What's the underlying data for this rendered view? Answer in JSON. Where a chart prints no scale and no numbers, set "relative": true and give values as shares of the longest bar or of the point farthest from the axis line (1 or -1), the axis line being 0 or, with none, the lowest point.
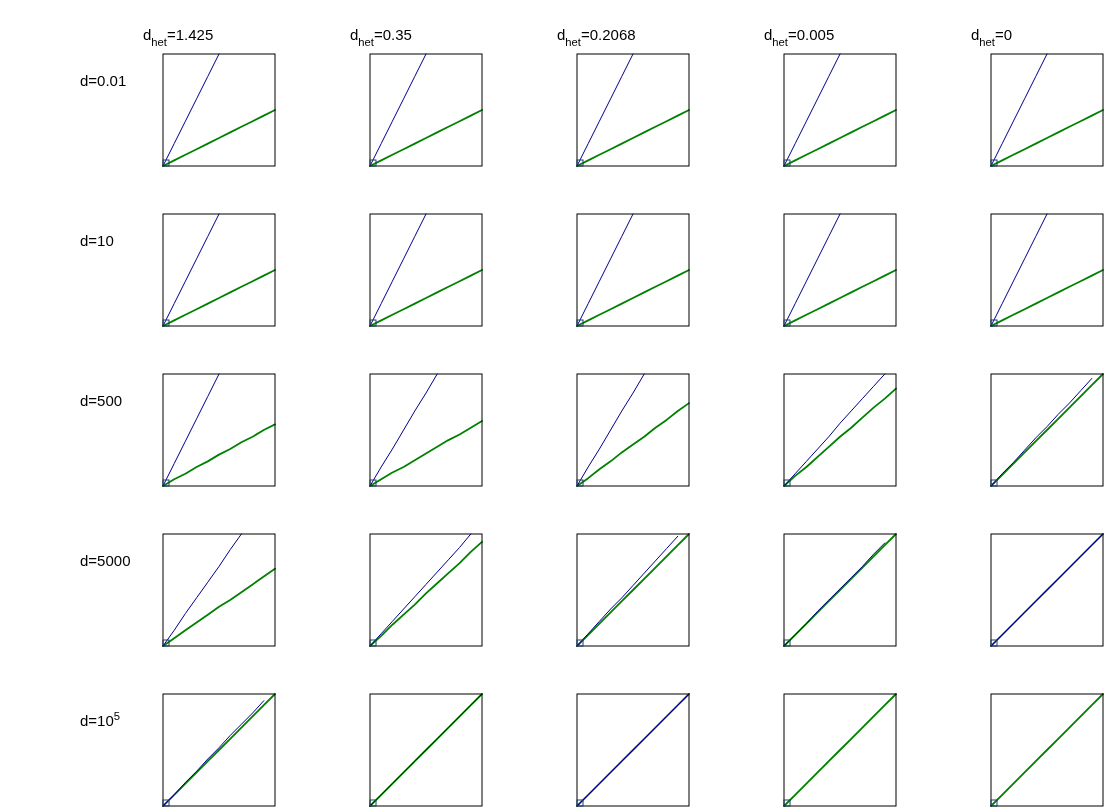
{
  "chart_data": [
    {
      "type": "line",
      "relative": true,
      "title": "d$_{het}$=1.425",
      "ylabel": "d=0.01",
      "categories": [
        null,
        null,
        null,
        null,
        null,
        null,
        null,
        null,
        null,
        null,
        null
      ],
      "series": [
        {
          "color": "#00008b",
          "values": [
            0,
            0.2,
            0.4,
            0.6,
            0.8,
            1,
            null,
            null,
            null,
            null,
            null
          ]
        },
        {
          "color": "#008000",
          "values": [
            0,
            0.05,
            0.1,
            0.15,
            0.2,
            0.25,
            0.3,
            0.35,
            0.4,
            0.45,
            0.5
          ]
        }
      ]
    },
    {
      "type": "line",
      "relative": true,
      "title": "d$_{het}$=0.35",
      "categories": [
        null,
        null,
        null,
        null,
        null,
        null,
        null,
        null,
        null,
        null,
        null
      ],
      "series": [
        {
          "color": "#00008b",
          "values": [
            0,
            0.2,
            0.4,
            0.6,
            0.8,
            1,
            null,
            null,
            null,
            null,
            null
          ]
        },
        {
          "color": "#008000",
          "values": [
            0,
            0.05,
            0.1,
            0.15,
            0.2,
            0.25,
            0.3,
            0.35,
            0.4,
            0.45,
            0.5
          ]
        }
      ]
    },
    {
      "type": "line",
      "relative": true,
      "title": "d$_{het}$=0.2068",
      "categories": [
        null,
        null,
        null,
        null,
        null,
        null,
        null,
        null,
        null,
        null,
        null
      ],
      "series": [
        {
          "color": "#00008b",
          "values": [
            0,
            0.2,
            0.4,
            0.6,
            0.8,
            1,
            null,
            null,
            null,
            null,
            null
          ]
        },
        {
          "color": "#008000",
          "values": [
            0,
            0.05,
            0.1,
            0.15,
            0.2,
            0.25,
            0.3,
            0.35,
            0.4,
            0.45,
            0.5
          ]
        }
      ]
    },
    {
      "type": "line",
      "relative": true,
      "title": "d$_{het}$=0.005",
      "categories": [
        null,
        null,
        null,
        null,
        null,
        null,
        null,
        null,
        null,
        null,
        null
      ],
      "series": [
        {
          "color": "#00008b",
          "values": [
            0,
            0.2,
            0.4,
            0.6,
            0.8,
            1,
            null,
            null,
            null,
            null,
            null
          ]
        },
        {
          "color": "#008000",
          "values": [
            0,
            0.05,
            0.1,
            0.15,
            0.2,
            0.25,
            0.3,
            0.35,
            0.4,
            0.45,
            0.5
          ]
        }
      ]
    },
    {
      "type": "line",
      "relative": true,
      "title": "d$_{het}$=0",
      "categories": [
        null,
        null,
        null,
        null,
        null,
        null,
        null,
        null,
        null,
        null,
        null
      ],
      "series": [
        {
          "color": "#00008b",
          "values": [
            0,
            0.2,
            0.4,
            0.6,
            0.8,
            1,
            null,
            null,
            null,
            null,
            null
          ]
        },
        {
          "color": "#008000",
          "values": [
            0,
            0.05,
            0.1,
            0.15,
            0.2,
            0.25,
            0.3,
            0.35,
            0.4,
            0.45,
            0.5
          ]
        }
      ]
    },
    {
      "type": "line",
      "relative": true,
      "ylabel": "d=10",
      "categories": [
        null,
        null,
        null,
        null,
        null,
        null,
        null,
        null,
        null,
        null,
        null
      ],
      "series": [
        {
          "color": "#00008b",
          "values": [
            0,
            0.2,
            0.4,
            0.6,
            0.8,
            1,
            null,
            null,
            null,
            null,
            null
          ]
        },
        {
          "color": "#008000",
          "values": [
            0,
            0.05,
            0.1,
            0.15,
            0.2,
            0.25,
            0.3,
            0.35,
            0.4,
            0.45,
            0.5
          ]
        }
      ]
    },
    {
      "type": "line",
      "relative": true,
      "categories": [
        null,
        null,
        null,
        null,
        null,
        null,
        null,
        null,
        null,
        null,
        null
      ],
      "series": [
        {
          "color": "#00008b",
          "values": [
            0,
            0.2,
            0.4,
            0.6,
            0.8,
            1,
            null,
            null,
            null,
            null,
            null
          ]
        },
        {
          "color": "#008000",
          "values": [
            0,
            0.05,
            0.1,
            0.15,
            0.2,
            0.25,
            0.3,
            0.35,
            0.4,
            0.45,
            0.5
          ]
        }
      ]
    },
    {
      "type": "line",
      "relative": true,
      "categories": [
        null,
        null,
        null,
        null,
        null,
        null,
        null,
        null,
        null,
        null,
        null
      ],
      "series": [
        {
          "color": "#00008b",
          "values": [
            0,
            0.2,
            0.4,
            0.6,
            0.8,
            1,
            null,
            null,
            null,
            null,
            null
          ]
        },
        {
          "color": "#008000",
          "values": [
            0,
            0.05,
            0.1,
            0.15,
            0.2,
            0.25,
            0.3,
            0.35,
            0.4,
            0.45,
            0.5
          ]
        }
      ]
    },
    {
      "type": "line",
      "relative": true,
      "categories": [
        null,
        null,
        null,
        null,
        null,
        null,
        null,
        null,
        null,
        null,
        null
      ],
      "series": [
        {
          "color": "#00008b",
          "values": [
            0,
            0.2,
            0.4,
            0.6,
            0.8,
            1,
            null,
            null,
            null,
            null,
            null
          ]
        },
        {
          "color": "#008000",
          "values": [
            0,
            0.05,
            0.1,
            0.15,
            0.2,
            0.25,
            0.3,
            0.35,
            0.4,
            0.45,
            0.5
          ]
        }
      ]
    },
    {
      "type": "line",
      "relative": true,
      "categories": [
        null,
        null,
        null,
        null,
        null,
        null,
        null,
        null,
        null,
        null,
        null
      ],
      "series": [
        {
          "color": "#00008b",
          "values": [
            0,
            0.2,
            0.4,
            0.6,
            0.8,
            1,
            null,
            null,
            null,
            null,
            null
          ]
        },
        {
          "color": "#008000",
          "values": [
            0,
            0.05,
            0.1,
            0.15,
            0.2,
            0.25,
            0.3,
            0.35,
            0.4,
            0.45,
            0.5
          ]
        }
      ]
    },
    {
      "type": "line",
      "relative": true,
      "ylabel": "d=500",
      "categories": [
        null,
        null,
        null,
        null,
        null,
        null,
        null,
        null,
        null,
        null,
        null
      ],
      "series": [
        {
          "color": "#00008b",
          "values": [
            0,
            0.2,
            0.4,
            0.6,
            0.8,
            1,
            null,
            null,
            null,
            null,
            null
          ]
        },
        {
          "color": "#008000",
          "values": [
            0,
            0.06,
            0.11,
            0.17,
            0.22,
            0.28,
            0.33,
            0.39,
            0.44,
            0.5,
            0.55
          ]
        }
      ]
    },
    {
      "type": "line",
      "relative": true,
      "categories": [
        null,
        null,
        null,
        null,
        null,
        null,
        null,
        null,
        null,
        null,
        null
      ],
      "series": [
        {
          "color": "#00008b",
          "values": [
            0,
            0.17,
            0.33,
            0.5,
            0.67,
            0.83,
            1,
            null,
            null,
            null,
            null
          ]
        },
        {
          "color": "#008000",
          "values": [
            0,
            0.06,
            0.12,
            0.17,
            0.23,
            0.29,
            0.35,
            0.41,
            0.46,
            0.52,
            0.58
          ]
        }
      ]
    },
    {
      "type": "line",
      "relative": true,
      "categories": [
        null,
        null,
        null,
        null,
        null,
        null,
        null,
        null,
        null,
        null,
        null
      ],
      "series": [
        {
          "color": "#00008b",
          "values": [
            0,
            0.17,
            0.33,
            0.5,
            0.67,
            0.83,
            1,
            null,
            null,
            null,
            null
          ]
        },
        {
          "color": "#008000",
          "values": [
            0,
            0.07,
            0.15,
            0.22,
            0.3,
            0.37,
            0.44,
            0.52,
            0.59,
            0.67,
            0.74
          ]
        }
      ]
    },
    {
      "type": "line",
      "relative": true,
      "categories": [
        null,
        null,
        null,
        null,
        null,
        null,
        null,
        null,
        null,
        null,
        null
      ],
      "series": [
        {
          "color": "#00008b",
          "values": [
            0,
            0.11,
            0.22,
            0.33,
            0.44,
            0.56,
            0.67,
            0.78,
            0.89,
            1,
            null
          ]
        },
        {
          "color": "#008000",
          "values": [
            0,
            0.09,
            0.17,
            0.26,
            0.35,
            0.44,
            0.52,
            0.61,
            0.7,
            0.78,
            0.87
          ]
        }
      ]
    },
    {
      "type": "line",
      "relative": true,
      "categories": [
        null,
        null,
        null,
        null,
        null,
        null,
        null,
        null,
        null,
        null,
        null
      ],
      "series": [
        {
          "color": "#00008b",
          "values": [
            0,
            0.11,
            0.21,
            0.32,
            0.43,
            0.53,
            0.64,
            0.74,
            0.85,
            0.96,
            null
          ]
        },
        {
          "color": "#008000",
          "values": [
            0,
            0.1,
            0.2,
            0.3,
            0.4,
            0.5,
            0.6,
            0.7,
            0.8,
            0.9,
            1
          ]
        }
      ]
    },
    {
      "type": "line",
      "relative": true,
      "ylabel": "d=5000",
      "categories": [
        null,
        null,
        null,
        null,
        null,
        null,
        null,
        null,
        null,
        null,
        null
      ],
      "series": [
        {
          "color": "#00008b",
          "values": [
            0,
            0.14,
            0.29,
            0.43,
            0.57,
            0.71,
            0.86,
            1,
            null,
            null,
            null
          ]
        },
        {
          "color": "#008000",
          "values": [
            0,
            0.07,
            0.14,
            0.21,
            0.28,
            0.35,
            0.41,
            0.48,
            0.55,
            0.62,
            0.69
          ]
        }
      ]
    },
    {
      "type": "line",
      "relative": true,
      "categories": [
        null,
        null,
        null,
        null,
        null,
        null,
        null,
        null,
        null,
        null,
        null
      ],
      "series": [
        {
          "color": "#00008b",
          "values": [
            0,
            0.11,
            0.22,
            0.33,
            0.44,
            0.55,
            0.66,
            0.77,
            0.88,
            1,
            null
          ]
        },
        {
          "color": "#008000",
          "values": [
            0,
            0.09,
            0.19,
            0.28,
            0.37,
            0.47,
            0.56,
            0.65,
            0.74,
            0.84,
            0.93
          ]
        }
      ]
    },
    {
      "type": "line",
      "relative": true,
      "categories": [
        null,
        null,
        null,
        null,
        null,
        null,
        null,
        null,
        null,
        null,
        null
      ],
      "series": [
        {
          "color": "#00008b",
          "values": [
            0,
            0.11,
            0.22,
            0.33,
            0.43,
            0.54,
            0.65,
            0.76,
            0.87,
            0.98,
            null
          ]
        },
        {
          "color": "#008000",
          "values": [
            0,
            0.1,
            0.2,
            0.3,
            0.4,
            0.5,
            0.6,
            0.7,
            0.8,
            0.9,
            1
          ]
        }
      ]
    },
    {
      "type": "line",
      "relative": true,
      "categories": [
        null,
        null,
        null,
        null,
        null,
        null,
        null,
        null,
        null,
        null,
        null
      ],
      "series": [
        {
          "color": "#00008b",
          "values": [
            0,
            0.1,
            0.2,
            0.31,
            0.41,
            0.51,
            0.61,
            0.71,
            0.82,
            0.92,
            null
          ]
        },
        {
          "color": "#008000",
          "values": [
            0,
            0.1,
            0.2,
            0.3,
            0.4,
            0.5,
            0.6,
            0.7,
            0.8,
            0.9,
            1
          ]
        }
      ]
    },
    {
      "type": "line",
      "relative": true,
      "categories": [
        null,
        null,
        null,
        null,
        null,
        null,
        null,
        null,
        null,
        null,
        null
      ],
      "series": [
        {
          "color": "#00008b",
          "values": [
            0,
            0.1,
            0.2,
            0.3,
            0.4,
            0.5,
            0.6,
            0.7,
            0.8,
            0.9,
            1
          ]
        },
        {
          "color": "#008000",
          "values": [
            0,
            0.1,
            0.2,
            0.3,
            0.4,
            0.5,
            0.6,
            0.7,
            0.8,
            0.9,
            1
          ]
        }
      ]
    },
    {
      "type": "line",
      "relative": true,
      "ylabel": "d=10$^{5}$",
      "categories": [
        null,
        null,
        null,
        null,
        null,
        null,
        null,
        null,
        null,
        null,
        null
      ],
      "series": [
        {
          "color": "#00008b",
          "values": [
            0,
            0.1,
            0.21,
            0.31,
            0.42,
            0.52,
            0.63,
            0.73,
            0.83,
            0.94,
            null
          ]
        },
        {
          "color": "#008000",
          "values": [
            0,
            0.1,
            0.2,
            0.3,
            0.4,
            0.5,
            0.6,
            0.7,
            0.8,
            0.9,
            1
          ]
        }
      ]
    },
    {
      "type": "line",
      "relative": true,
      "categories": [
        null,
        null,
        null,
        null,
        null,
        null,
        null,
        null,
        null,
        null,
        null
      ],
      "series": [
        {
          "color": "#00008b",
          "values": [
            0,
            0.1,
            0.2,
            0.3,
            0.4,
            0.5,
            0.6,
            0.7,
            0.8,
            0.9,
            1
          ]
        },
        {
          "color": "#008000",
          "values": [
            0,
            0.1,
            0.2,
            0.3,
            0.4,
            0.5,
            0.6,
            0.7,
            0.8,
            0.9,
            1
          ]
        }
      ]
    },
    {
      "type": "line",
      "relative": true,
      "categories": [
        null,
        null,
        null,
        null,
        null,
        null,
        null,
        null,
        null,
        null,
        null
      ],
      "series": [
        {
          "color": "#00008b",
          "values": [
            0,
            0.1,
            0.2,
            0.3,
            0.4,
            0.5,
            0.6,
            0.7,
            0.8,
            0.9,
            1
          ]
        },
        {
          "color": "#008000",
          "values": [
            0,
            0.1,
            0.2,
            0.3,
            0.4,
            0.5,
            0.6,
            0.7,
            0.8,
            0.9,
            1
          ]
        }
      ]
    },
    {
      "type": "line",
      "relative": true,
      "categories": [
        null,
        null,
        null,
        null,
        null,
        null,
        null,
        null,
        null,
        null,
        null
      ],
      "series": [
        {
          "color": "#008000",
          "values": [
            0,
            0.1,
            0.2,
            0.3,
            0.4,
            0.5,
            0.6,
            0.7,
            0.8,
            0.9,
            1
          ]
        }
      ]
    },
    {
      "type": "line",
      "relative": true,
      "categories": [
        null,
        null,
        null,
        null,
        null,
        null,
        null,
        null,
        null,
        null,
        null
      ],
      "series": [
        {
          "color": "#008000",
          "values": [
            0,
            0.1,
            0.2,
            0.3,
            0.4,
            0.5,
            0.6,
            0.7,
            0.8,
            0.9,
            1
          ]
        }
      ]
    }
  ]
}
